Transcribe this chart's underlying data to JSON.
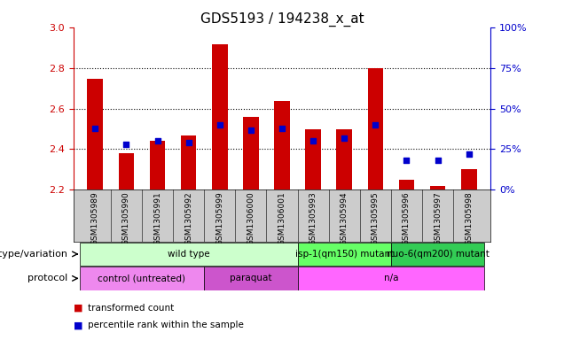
{
  "title": "GDS5193 / 194238_x_at",
  "samples": [
    "GSM1305989",
    "GSM1305990",
    "GSM1305991",
    "GSM1305992",
    "GSM1305999",
    "GSM1306000",
    "GSM1306001",
    "GSM1305993",
    "GSM1305994",
    "GSM1305995",
    "GSM1305996",
    "GSM1305997",
    "GSM1305998"
  ],
  "transformed_count": [
    2.75,
    2.38,
    2.44,
    2.47,
    2.92,
    2.56,
    2.64,
    2.5,
    2.5,
    2.8,
    2.25,
    2.22,
    2.3
  ],
  "percentile_rank": [
    38,
    28,
    30,
    29,
    40,
    37,
    38,
    30,
    32,
    40,
    18,
    18,
    22
  ],
  "ylim_left": [
    2.2,
    3.0
  ],
  "ylim_right": [
    0,
    100
  ],
  "yticks_left": [
    2.2,
    2.4,
    2.6,
    2.8,
    3.0
  ],
  "yticks_right": [
    0,
    25,
    50,
    75,
    100
  ],
  "bar_color": "#cc0000",
  "dot_color": "#0000cc",
  "bar_width": 0.5,
  "baseline": 2.2,
  "genotype_groups": [
    {
      "label": "wild type",
      "start": 0,
      "end": 7,
      "color": "#ccffcc"
    },
    {
      "label": "isp-1(qm150) mutant",
      "start": 7,
      "end": 10,
      "color": "#66ff66"
    },
    {
      "label": "nuo-6(qm200) mutant",
      "start": 10,
      "end": 13,
      "color": "#33cc55"
    }
  ],
  "protocol_groups": [
    {
      "label": "control (untreated)",
      "start": 0,
      "end": 4,
      "color": "#ee88ee"
    },
    {
      "label": "paraquat",
      "start": 4,
      "end": 7,
      "color": "#cc55cc"
    },
    {
      "label": "n/a",
      "start": 7,
      "end": 13,
      "color": "#ff66ff"
    }
  ],
  "legend_items": [
    {
      "label": "transformed count",
      "color": "#cc0000"
    },
    {
      "label": "percentile rank within the sample",
      "color": "#0000cc"
    }
  ],
  "left_axis_color": "#cc0000",
  "right_axis_color": "#0000cc",
  "row_label_genotype": "genotype/variation",
  "row_label_protocol": "protocol",
  "tick_bg_color": "#cccccc",
  "title_fontsize": 11
}
